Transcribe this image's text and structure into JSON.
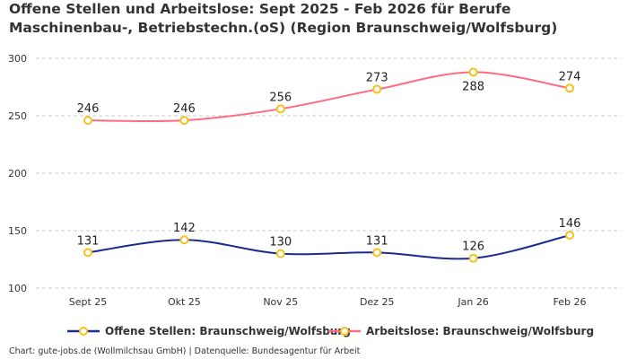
{
  "chart_data": {
    "type": "line",
    "title": "Offene Stellen und Arbeitslose: Sept 2025 - Feb 2026 für Berufe Maschinenbau-, Betriebstechn.(oS) (Region Braunschweig/Wolfsburg)",
    "categories": [
      "Sept 25",
      "Okt 25",
      "Nov 25",
      "Dez 25",
      "Jan 26",
      "Feb 26"
    ],
    "ylim": [
      100,
      300
    ],
    "yticks": [
      100,
      150,
      200,
      250,
      300
    ],
    "grid": true,
    "legend_position": "bottom",
    "series": [
      {
        "name": "Offene Stellen: Braunschweig/Wolfsburg",
        "color": "#1b2a8c",
        "values": [
          131,
          142,
          130,
          131,
          126,
          146
        ]
      },
      {
        "name": "Arbeitslose: Braunschweig/Wolfsburg",
        "color": "#ff6b81",
        "values": [
          246,
          246,
          256,
          273,
          288,
          274
        ]
      }
    ],
    "marker_color": "#f5c21b"
  },
  "footer": "Chart: gute-jobs.de (Wollmilchsau GmbH) | Datenquelle: Bundesagentur für Arbeit"
}
